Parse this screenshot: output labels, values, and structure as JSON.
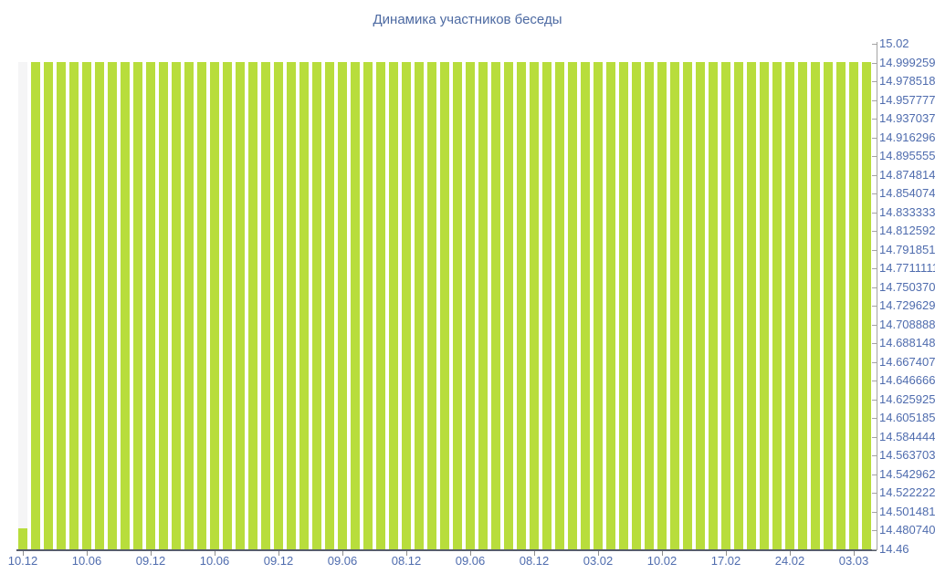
{
  "page": {
    "title": "Динамика участников беседы"
  },
  "chart_data": {
    "type": "bar",
    "title": "Динамика участников беседы",
    "xlabel": "",
    "ylabel": "",
    "ylim": [
      14.46,
      15.02
    ],
    "grid": false,
    "legend": "none",
    "bar_color": "#b8dd3c",
    "label_color": "#4f6cae",
    "axis_line_color": "#565d6b",
    "y_axis_line_color": "#a3a3a3",
    "highlight_band": {
      "bar_index": 0,
      "to_value": 15,
      "color": "#f5f5f6"
    },
    "x_tick_every": 5,
    "x_tick_labels": [
      "10.12",
      "10.06",
      "09.12",
      "10.06",
      "09.12",
      "09.06",
      "08.12",
      "09.06",
      "08.12",
      "03.02",
      "10.02",
      "17.02",
      "24.02",
      "03.03"
    ],
    "y_tick_labels": [
      "15.02",
      "14.9992592593",
      "14.9785185185",
      "14.9577777778",
      "14.9370370370",
      "14.9162962963",
      "14.8955555556",
      "14.8748148148",
      "14.8540740741",
      "14.8333333333",
      "14.8125925926",
      "14.7918518519",
      "14.7711111111",
      "14.7503703704",
      "14.7296296296",
      "14.7088888889",
      "14.6881481481",
      "14.6674074074",
      "14.6466666667",
      "14.6259259259",
      "14.6051851852",
      "14.5844444444",
      "14.5637037037",
      "14.5429629630",
      "14.5222222222",
      "14.5014814815",
      "14.4807407407",
      "14.46"
    ],
    "values": [
      14.483,
      15,
      15,
      15,
      15,
      15,
      15,
      15,
      15,
      15,
      15,
      15,
      15,
      15,
      15,
      15,
      15,
      15,
      15,
      15,
      15,
      15,
      15,
      15,
      15,
      15,
      15,
      15,
      15,
      15,
      15,
      15,
      15,
      15,
      15,
      15,
      15,
      15,
      15,
      15,
      15,
      15,
      15,
      15,
      15,
      15,
      15,
      15,
      15,
      15,
      15,
      15,
      15,
      15,
      15,
      15,
      15,
      15,
      15,
      15,
      15,
      15,
      15,
      15,
      15,
      15,
      15
    ]
  }
}
